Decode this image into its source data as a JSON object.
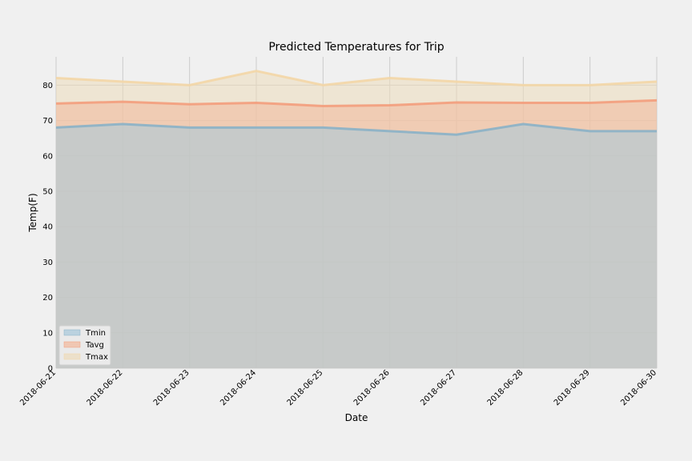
{
  "chart_data": {
    "type": "area",
    "title": "Predicted Temperatures for Trip",
    "xlabel": "Date",
    "ylabel": "Temp(F)",
    "x": [
      "2018-06-21",
      "2018-06-22",
      "2018-06-23",
      "2018-06-24",
      "2018-06-25",
      "2018-06-26",
      "2018-06-27",
      "2018-06-28",
      "2018-06-29",
      "2018-06-30"
    ],
    "ylim": [
      0,
      88
    ],
    "yticks": [
      0,
      10,
      20,
      30,
      40,
      50,
      60,
      70,
      80
    ],
    "grid": true,
    "legend": {
      "location": "lower-left"
    },
    "series": [
      {
        "name": "Tmin",
        "color": "#a6c8da",
        "line_color": "#8ab1c7",
        "values": [
          68.0,
          69.0,
          68.0,
          68.0,
          68.0,
          67.0,
          66.0,
          69.0,
          67.0,
          67.0
        ]
      },
      {
        "name": "Tavg",
        "color": "#f2b89b",
        "line_color": "#f39d7c",
        "values": [
          74.8,
          75.3,
          74.6,
          75.0,
          74.1,
          74.3,
          75.1,
          75.0,
          75.0,
          75.7
        ]
      },
      {
        "name": "Tmax",
        "color": "#ecdcbc",
        "line_color": "#f3d6a6",
        "values": [
          82.0,
          81.0,
          80.0,
          84.0,
          80.0,
          82.0,
          81.0,
          80.0,
          80.0,
          81.0
        ]
      }
    ]
  }
}
